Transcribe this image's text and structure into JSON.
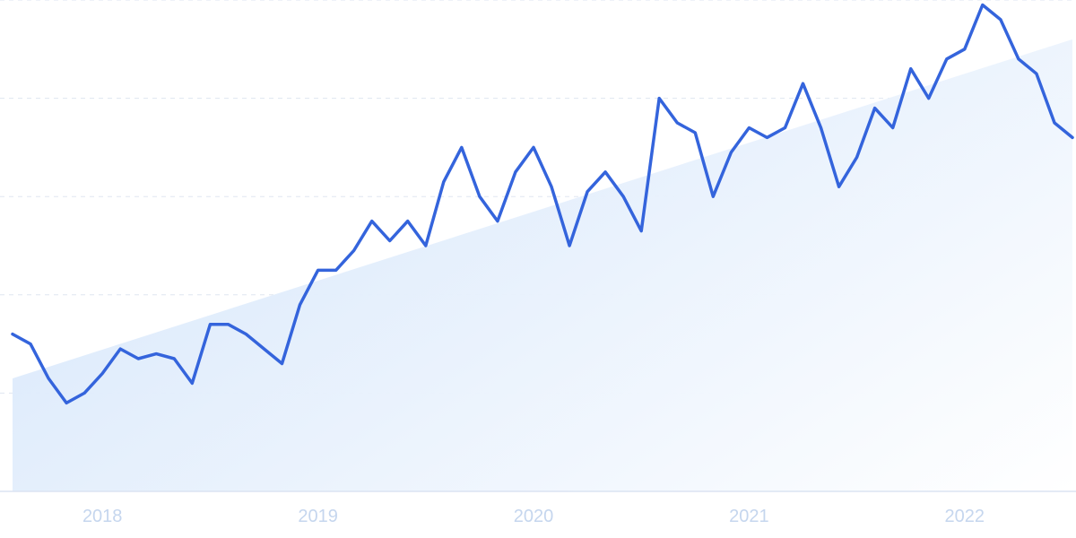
{
  "chart_data": {
    "type": "line",
    "title": "",
    "xlabel": "",
    "ylabel": "",
    "x": [
      "2017-08",
      "2017-09",
      "2017-10",
      "2017-11",
      "2017-12",
      "2018-01",
      "2018-02",
      "2018-03",
      "2018-04",
      "2018-05",
      "2018-06",
      "2018-07",
      "2018-08",
      "2018-09",
      "2018-10",
      "2018-11",
      "2018-12",
      "2019-01",
      "2019-02",
      "2019-03",
      "2019-04",
      "2019-05",
      "2019-06",
      "2019-07",
      "2019-08",
      "2019-09",
      "2019-10",
      "2019-11",
      "2019-12",
      "2020-01",
      "2020-02",
      "2020-03",
      "2020-04",
      "2020-05",
      "2020-06",
      "2020-07",
      "2020-08",
      "2020-09",
      "2020-10",
      "2020-11",
      "2020-12",
      "2021-01",
      "2021-02",
      "2021-03",
      "2021-04",
      "2021-05",
      "2021-06",
      "2021-07",
      "2021-08",
      "2021-09",
      "2021-10",
      "2021-11",
      "2021-12",
      "2022-01",
      "2022-02",
      "2022-03",
      "2022-04",
      "2022-05",
      "2022-06",
      "2022-07"
    ],
    "series": [
      {
        "values": [
          32,
          30,
          23,
          18,
          20,
          24,
          29,
          27,
          28,
          27,
          22,
          34,
          34,
          32,
          29,
          26,
          38,
          45,
          45,
          49,
          55,
          51,
          55,
          50,
          63,
          70,
          60,
          55,
          65,
          70,
          62,
          50,
          61,
          65,
          60,
          53,
          80,
          75,
          73,
          60,
          69,
          74,
          72,
          74,
          83,
          74,
          62,
          68,
          78,
          74,
          86,
          80,
          88,
          90,
          99,
          96,
          88,
          85,
          75,
          72
        ]
      }
    ],
    "trend": {
      "start": 23,
      "end": 92
    },
    "ylim": [
      0,
      100
    ],
    "yticks": [
      20,
      40,
      60,
      80,
      100
    ],
    "xticks": [
      "2018",
      "2019",
      "2020",
      "2021",
      "2022"
    ],
    "grid": true,
    "legend": "none",
    "colors": {
      "line": "#3464dc",
      "area": "#d7e7fb",
      "tick_label": "#c5d6ee"
    }
  }
}
